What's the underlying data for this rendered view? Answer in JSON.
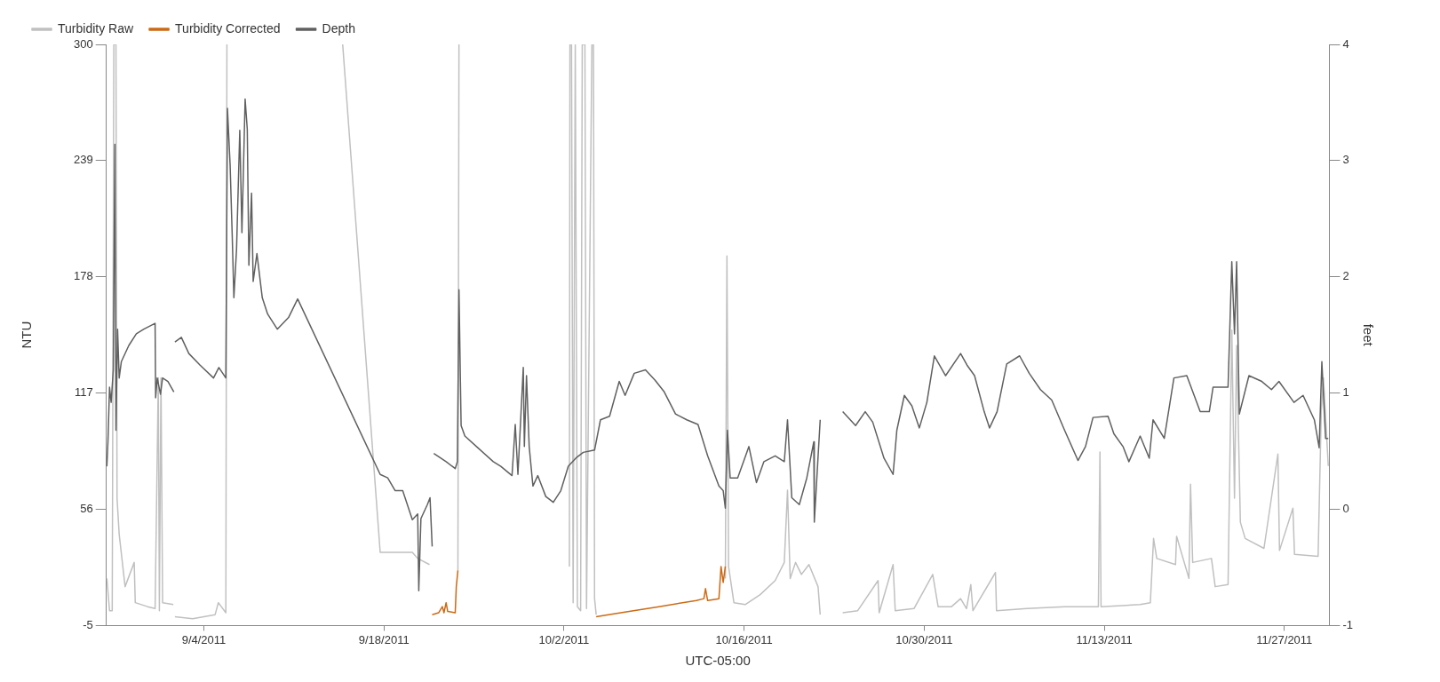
{
  "chart_data": {
    "type": "line",
    "xlabel": "UTC-05:00",
    "ylabel": "NTU",
    "y2label": "feet",
    "legend": "top left",
    "grid": false,
    "marker": "none",
    "xlim": [
      "2011-08-27T10:00",
      "2011-11-30T12:00"
    ],
    "xticks": [
      {
        "value": "2011-09-04",
        "label": "9/4/2011"
      },
      {
        "value": "2011-09-18",
        "label": "9/18/2011"
      },
      {
        "value": "2011-10-02",
        "label": "10/2/2011"
      },
      {
        "value": "2011-10-16",
        "label": "10/16/2011"
      },
      {
        "value": "2011-10-30",
        "label": "10/30/2011"
      },
      {
        "value": "2011-11-13",
        "label": "11/13/2011"
      },
      {
        "value": "2011-11-27",
        "label": "11/27/2011"
      }
    ],
    "ylim": [
      -5,
      300
    ],
    "yticks": [
      -5,
      56,
      117,
      178,
      239,
      300
    ],
    "y2lim": [
      -1,
      4
    ],
    "y2ticks": [
      -1,
      0,
      1,
      2,
      3,
      4
    ],
    "series": [
      {
        "name": "Turbidity Raw",
        "color": "#c0c0c0",
        "x": [
          "2011-08-27T11:00",
          "2011-08-27T16:00",
          "2011-08-27T21:00",
          "2011-08-28T00:00",
          "2011-08-28T04:00",
          "2011-08-28T06:00",
          "2011-08-28T10:00",
          "2011-08-28T21:00",
          "2011-08-29T14:00",
          "2011-08-29T16:00",
          "2011-08-30T15:00",
          "2011-08-31T05:00",
          "2011-08-31T11:00",
          "2011-08-31T13:00",
          "2011-08-31T16:00",
          "2011-08-31T19:00",
          "2011-09-01T15:00",
          "2011-09-01T16:00",
          "2011-09-01T18:00",
          "2011-09-03T03:00",
          "2011-09-04T21:00",
          "2011-09-05T03:00",
          "2011-09-05T17:00",
          "2011-09-05T19:00",
          "2011-09-10T00:00",
          "2011-09-14T19:00",
          "2011-09-17T17:00",
          "2011-09-20T05:00",
          "2011-09-20T15:00",
          "2011-09-21T13:00",
          "2011-09-21T15:00",
          "2011-09-23T18:00",
          "2011-09-23T20:00",
          "2011-09-24T00:00",
          "2011-10-02T10:00",
          "2011-10-02T11:00",
          "2011-10-02T14:00",
          "2011-10-02T17:00",
          "2011-10-02T21:00",
          "2011-10-03T01:00",
          "2011-10-03T07:00",
          "2011-10-03T10:00",
          "2011-10-03T15:00",
          "2011-10-03T18:00",
          "2011-10-04T04:00",
          "2011-10-04T07:00",
          "2011-10-04T09:00",
          "2011-10-04T12:00",
          "2011-10-08T00:00",
          "2011-10-14T13:00",
          "2011-10-14T16:00",
          "2011-10-14T19:00",
          "2011-10-15T05:00",
          "2011-10-16T02:00",
          "2011-10-17T06:00",
          "2011-10-18T10:00",
          "2011-10-19T03:00",
          "2011-10-19T09:00",
          "2011-10-19T14:00",
          "2011-10-20T00:00",
          "2011-10-20T11:00",
          "2011-10-21T01:00",
          "2011-10-21T18:00",
          "2011-10-21T22:00",
          "2011-10-22T12:00",
          "2011-10-23T16:00",
          "2011-10-24T20:00",
          "2011-10-26T10:00",
          "2011-10-26T12:00",
          "2011-10-27T14:00",
          "2011-10-27T18:00",
          "2011-10-29T05:00",
          "2011-10-30T16:00",
          "2011-10-31T02:00",
          "2011-11-01T03:00",
          "2011-11-01T20:00",
          "2011-11-02T07:00",
          "2011-11-02T15:00",
          "2011-11-02T19:00",
          "2011-11-04T13:00",
          "2011-11-04T15:00",
          "2011-11-07T00:00",
          "2011-11-09T22:00",
          "2011-11-12T13:00",
          "2011-11-12T16:00",
          "2011-11-12T18:00",
          "2011-11-15T19:00",
          "2011-11-16T14:00",
          "2011-11-16T20:00",
          "2011-11-17T02:00",
          "2011-11-18T13:00",
          "2011-11-18T15:00",
          "2011-11-19T14:00",
          "2011-11-19T17:00",
          "2011-11-19T21:00",
          "2011-11-21T08:00",
          "2011-11-21T15:00",
          "2011-11-22T15:00",
          "2011-11-22T22:00",
          "2011-11-23T03:00",
          "2011-11-23T07:00",
          "2011-11-23T14:00",
          "2011-11-23T23:00",
          "2011-11-25T10:00",
          "2011-11-26T12:00",
          "2011-11-26T15:00",
          "2011-11-27T16:00",
          "2011-11-27T19:00",
          "2011-11-29T15:00",
          "2011-11-29T21:00",
          "2011-11-30T01:00",
          "2011-11-30T10:00"
        ],
        "values": [
          19.7,
          2.8,
          2.8,
          300,
          300,
          61.8,
          42.9,
          15.4,
          28.1,
          7.0,
          4.9,
          3.9,
          125,
          2.8,
          125,
          7.0,
          6.0,
          null,
          -0.4,
          -1.4,
          0.7,
          7.0,
          1.7,
          300,
          null,
          300,
          33.4,
          33.4,
          30.2,
          27.0,
          null,
          23.9,
          300,
          null,
          26.0,
          300,
          300,
          7.0,
          300,
          4.9,
          2.8,
          300,
          300,
          3.9,
          300,
          300,
          9.1,
          0.7,
          null,
          19.7,
          189,
          26.0,
          7.0,
          6.0,
          11.2,
          18.6,
          28.1,
          66.0,
          19.7,
          28.1,
          21.8,
          27.0,
          15.4,
          0.7,
          null,
          1.7,
          2.8,
          18.6,
          1.7,
          27.0,
          2.8,
          3.9,
          21.8,
          4.9,
          4.9,
          9.1,
          3.9,
          16.5,
          2.8,
          22.8,
          2.8,
          3.9,
          4.9,
          4.9,
          86.1,
          4.9,
          6.0,
          7.0,
          40.7,
          30.2,
          27.0,
          41.8,
          19.7,
          69.2,
          28.1,
          30.2,
          15.4,
          16.5,
          150,
          61.8,
          142,
          49.2,
          40.7,
          35.5,
          85.0,
          34.4,
          56.6,
          32.3,
          31.3,
          108,
          125,
          78.7
        ]
      },
      {
        "name": "Turbidity Corrected",
        "color": "#cc6a14",
        "x": [
          "2011-09-21T18:00",
          "2011-09-22T06:00",
          "2011-09-22T13:00",
          "2011-09-22T16:00",
          "2011-09-22T20:00",
          "2011-09-22T23:00",
          "2011-09-23T13:00",
          "2011-09-23T15:00",
          "2011-09-23T18:00",
          "2011-09-28T00:00",
          "2011-10-04T12:00",
          "2011-10-06T10:00",
          "2011-10-09T09:00",
          "2011-10-12T07:00",
          "2011-10-12T21:00",
          "2011-10-13T00:00",
          "2011-10-13T04:00",
          "2011-10-14T01:00",
          "2011-10-14T05:00",
          "2011-10-14T09:00",
          "2011-10-14T13:00"
        ],
        "values": [
          0.7,
          1.7,
          4.9,
          1.7,
          7.0,
          2.4,
          1.7,
          15.4,
          23.9,
          null,
          -0.4,
          1.7,
          4.9,
          8.1,
          9.1,
          14.4,
          8.1,
          9.1,
          26.0,
          17.6,
          26.0
        ]
      },
      {
        "name": "Depth",
        "color": "#606060",
        "axis": "y2",
        "x": [
          "2011-08-27T11:00",
          "2011-08-27T13:00",
          "2011-08-27T16:00",
          "2011-08-27T19:00",
          "2011-08-27T23:00",
          "2011-08-28T02:00",
          "2011-08-28T04:00",
          "2011-08-28T07:00",
          "2011-08-28T10:00",
          "2011-08-28T14:00",
          "2011-08-29T04:00",
          "2011-08-29T18:00",
          "2011-08-30T08:00",
          "2011-08-31T05:00",
          "2011-08-31T06:00",
          "2011-08-31T09:00",
          "2011-08-31T15:00",
          "2011-08-31T19:00",
          "2011-09-01T05:00",
          "2011-09-01T16:00",
          "2011-09-01T17:00",
          "2011-09-01T18:00",
          "2011-09-02T06:00",
          "2011-09-02T20:00",
          "2011-09-03T17:00",
          "2011-09-04T18:00",
          "2011-09-05T04:00",
          "2011-09-05T17:00",
          "2011-09-05T20:00",
          "2011-09-06T01:00",
          "2011-09-06T05:00",
          "2011-09-06T08:00",
          "2011-09-06T13:00",
          "2011-09-06T19:00",
          "2011-09-06T23:00",
          "2011-09-07T05:00",
          "2011-09-07T09:00",
          "2011-09-07T12:00",
          "2011-09-07T17:00",
          "2011-09-07T20:00",
          "2011-09-08T03:00",
          "2011-09-08T13:00",
          "2011-09-08T23:00",
          "2011-09-09T17:00",
          "2011-09-10T14:00",
          "2011-09-11T07:00",
          "2011-09-17T17:00",
          "2011-09-18T07:00",
          "2011-09-18T21:00",
          "2011-09-19T11:00",
          "2011-09-20T05:00",
          "2011-09-20T15:00",
          "2011-09-20T17:00",
          "2011-09-20T21:00",
          "2011-09-21T09:00",
          "2011-09-21T14:00",
          "2011-09-21T18:00",
          "2011-09-21T19:00",
          "2011-09-21T21:00",
          "2011-09-22T20:00",
          "2011-09-23T13:00",
          "2011-09-23T17:00",
          "2011-09-23T20:00",
          "2011-09-24T00:00",
          "2011-09-24T07:00",
          "2011-09-25T07:00",
          "2011-09-26T12:00",
          "2011-09-27T02:00",
          "2011-09-27T23:00",
          "2011-09-28T05:00",
          "2011-09-28T10:00",
          "2011-09-28T20:00",
          "2011-09-28T22:00",
          "2011-09-29T02:00",
          "2011-09-29T07:00",
          "2011-09-29T14:00",
          "2011-09-29T23:00",
          "2011-09-30T14:00",
          "2011-10-01T04:00",
          "2011-10-01T18:00",
          "2011-10-02T08:00",
          "2011-10-02T22:00",
          "2011-10-03T12:00",
          "2011-10-04T09:00",
          "2011-10-04T20:00",
          "2011-10-05T13:00",
          "2011-10-06T07:00",
          "2011-10-06T18:00",
          "2011-10-07T11:00",
          "2011-10-08T08:00",
          "2011-10-09T02:00",
          "2011-10-09T19:00",
          "2011-10-10T16:00",
          "2011-10-11T13:00",
          "2011-10-12T10:00",
          "2011-10-13T04:00",
          "2011-10-14T01:00",
          "2011-10-14T09:00",
          "2011-10-14T13:00",
          "2011-10-14T17:00",
          "2011-10-14T22:00",
          "2011-10-15T12:00",
          "2011-10-16T09:00",
          "2011-10-16T23:00",
          "2011-10-17T13:00",
          "2011-10-18T10:00",
          "2011-10-19T03:00",
          "2011-10-19T09:00",
          "2011-10-19T17:00",
          "2011-10-20T07:00",
          "2011-10-20T21:00",
          "2011-10-21T10:00",
          "2011-10-21T11:00",
          "2011-10-21T22:00",
          "2011-10-22T12:00",
          "2011-10-23T16:00",
          "2011-10-24T16:00",
          "2011-10-25T10:00",
          "2011-10-26T00:00",
          "2011-10-26T21:00",
          "2011-10-27T14:00",
          "2011-10-27T21:00",
          "2011-10-28T11:00",
          "2011-10-29T01:00",
          "2011-10-29T15:00",
          "2011-10-30T05:00",
          "2011-10-30T19:00",
          "2011-10-31T16:00",
          "2011-11-01T20:00",
          "2011-11-02T08:00",
          "2011-11-02T22:00",
          "2011-11-03T16:00",
          "2011-11-04T02:00",
          "2011-11-04T16:00",
          "2011-11-05T10:00",
          "2011-11-06T10:00",
          "2011-11-07T04:00",
          "2011-11-08T01:00",
          "2011-11-08T22:00",
          "2011-11-09T22:00",
          "2011-11-10T23:00",
          "2011-11-11T13:00",
          "2011-11-12T03:00",
          "2011-11-13T07:00",
          "2011-11-13T18:00",
          "2011-11-14T11:00",
          "2011-11-14T22:00",
          "2011-11-15T19:00",
          "2011-11-16T12:00",
          "2011-11-16T19:00",
          "2011-11-17T16:00",
          "2011-11-18T10:00",
          "2011-11-19T10:00",
          "2011-11-20T11:00",
          "2011-11-21T04:00",
          "2011-11-21T11:00",
          "2011-11-22T15:00",
          "2011-11-22T22:00",
          "2011-11-23T03:00",
          "2011-11-23T07:00",
          "2011-11-23T12:00",
          "2011-11-24T06:00",
          "2011-11-25T06:00",
          "2011-11-26T00:00",
          "2011-11-26T14:00",
          "2011-11-27T18:00",
          "2011-11-28T11:00",
          "2011-11-29T08:00",
          "2011-11-29T17:00",
          "2011-11-29T22:00",
          "2011-11-30T05:00",
          "2011-11-30T10:00"
        ],
        "values": [
          0.37,
          0.58,
          1.05,
          0.92,
          1.2,
          3.14,
          0.68,
          1.55,
          1.13,
          1.27,
          1.41,
          1.51,
          1.55,
          1.6,
          0.96,
          1.13,
          0.99,
          1.13,
          1.1,
          1.01,
          null,
          1.44,
          1.48,
          1.34,
          1.24,
          1.13,
          1.22,
          1.13,
          3.45,
          2.96,
          2.34,
          1.82,
          2.24,
          3.26,
          2.38,
          3.53,
          3.27,
          2.1,
          2.72,
          1.96,
          2.2,
          1.82,
          1.68,
          1.55,
          1.65,
          1.81,
          0.3,
          0.27,
          0.16,
          0.16,
          -0.09,
          -0.04,
          -0.7,
          -0.08,
          0.04,
          0.1,
          -0.32,
          null,
          0.48,
          0.41,
          0.35,
          0.41,
          1.89,
          0.72,
          0.63,
          0.53,
          0.41,
          0.37,
          0.29,
          0.73,
          0.3,
          1.22,
          0.54,
          1.15,
          0.54,
          0.2,
          0.29,
          0.11,
          0.06,
          0.16,
          0.37,
          0.44,
          0.49,
          0.51,
          0.77,
          0.8,
          1.1,
          0.98,
          1.17,
          1.2,
          1.11,
          1.01,
          0.82,
          0.77,
          0.73,
          0.46,
          0.2,
          0.16,
          0.01,
          0.68,
          0.27,
          0.27,
          0.54,
          0.23,
          0.41,
          0.46,
          0.41,
          0.77,
          0.1,
          0.04,
          0.27,
          0.58,
          -0.11,
          0.77,
          null,
          0.84,
          0.72,
          0.84,
          0.75,
          0.44,
          0.3,
          0.68,
          0.98,
          0.89,
          0.7,
          0.92,
          1.32,
          1.15,
          1.34,
          1.24,
          1.15,
          0.84,
          0.7,
          0.84,
          1.25,
          1.32,
          1.17,
          1.03,
          0.94,
          0.68,
          0.42,
          0.54,
          0.79,
          0.8,
          0.65,
          0.54,
          0.41,
          0.63,
          0.44,
          0.77,
          0.61,
          1.13,
          1.15,
          0.84,
          0.84,
          1.05,
          1.05,
          2.13,
          1.51,
          2.13,
          0.82,
          1.15,
          1.1,
          1.03,
          1.1,
          0.92,
          0.98,
          0.77,
          0.53,
          1.27,
          0.61,
          0.61
        ]
      }
    ]
  }
}
